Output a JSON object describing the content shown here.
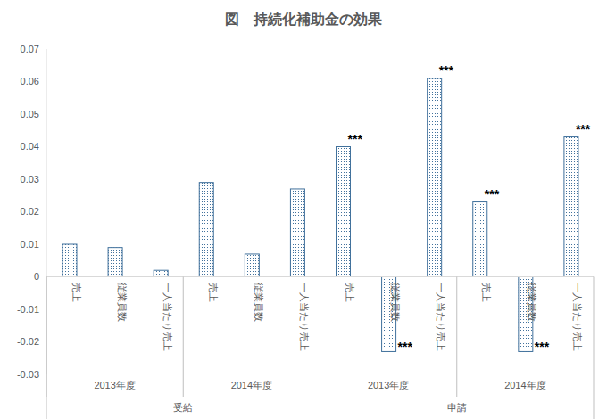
{
  "chart_data": {
    "type": "bar",
    "title": "図　持続化補助金の効果",
    "categories": [
      "売上",
      "従業員数",
      "一人当たり売上",
      "売上",
      "従業員数",
      "一人当たり売上",
      "売上",
      "従業員数",
      "一人当たり売上",
      "売上",
      "従業員数",
      "一人当たり売上"
    ],
    "category_groups": [
      [
        "2013年度",
        "2014年度",
        "2013年度",
        "2014年度"
      ],
      [
        "受給",
        "申請"
      ]
    ],
    "values": [
      0.01,
      0.009,
      0.002,
      0.029,
      0.007,
      0.027,
      0.04,
      -0.023,
      0.061,
      0.023,
      -0.023,
      0.043
    ],
    "annotations": [
      null,
      null,
      null,
      null,
      null,
      null,
      "***",
      "***",
      "***",
      "***",
      "***",
      "***"
    ],
    "color": "#41719c",
    "ylim": [
      -0.03,
      0.07
    ],
    "yticks": [
      -0.03,
      -0.02,
      -0.01,
      0,
      0.01,
      0.02,
      0.03,
      0.04,
      0.05,
      0.06,
      0.07
    ],
    "grid": false
  }
}
